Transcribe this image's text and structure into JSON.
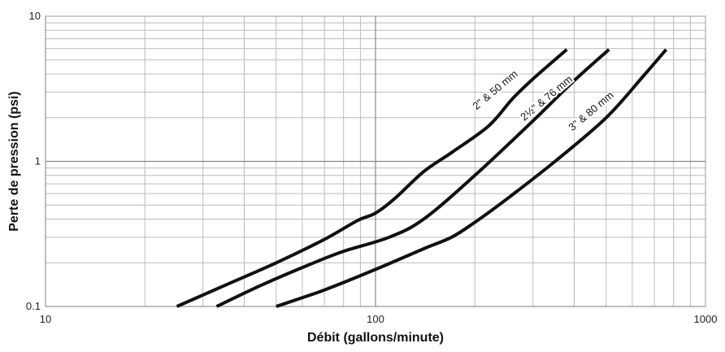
{
  "chart_data": {
    "type": "line",
    "title": "",
    "xlabel": "Débit (gallons/minute)",
    "ylabel": "Perte de pression (psi)",
    "xscale": "log",
    "yscale": "log",
    "xlim": [
      10,
      1000
    ],
    "ylim": [
      0.1,
      10
    ],
    "grid": true,
    "x_ticks": [
      "10",
      "100",
      "1000"
    ],
    "y_ticks": [
      "0.1",
      "1",
      "10"
    ],
    "series": [
      {
        "name": "2\" & 50 mm",
        "color": "#111111",
        "points": [
          [
            25,
            0.1
          ],
          [
            35,
            0.14
          ],
          [
            50,
            0.2
          ],
          [
            70,
            0.29
          ],
          [
            88,
            0.39
          ],
          [
            100,
            0.44
          ],
          [
            115,
            0.56
          ],
          [
            140,
            0.85
          ],
          [
            170,
            1.15
          ],
          [
            220,
            1.75
          ],
          [
            260,
            2.7
          ],
          [
            300,
            3.7
          ],
          [
            380,
            5.9
          ]
        ]
      },
      {
        "name": "2½\" & 76 mm",
        "color": "#111111",
        "points": [
          [
            33,
            0.1
          ],
          [
            45,
            0.14
          ],
          [
            65,
            0.2
          ],
          [
            80,
            0.24
          ],
          [
            110,
            0.3
          ],
          [
            140,
            0.4
          ],
          [
            200,
            0.8
          ],
          [
            300,
            1.9
          ],
          [
            400,
            3.6
          ],
          [
            510,
            5.9
          ]
        ]
      },
      {
        "name": "3\" & 80 mm",
        "color": "#111111",
        "points": [
          [
            50,
            0.1
          ],
          [
            70,
            0.13
          ],
          [
            100,
            0.18
          ],
          [
            140,
            0.25
          ],
          [
            170,
            0.3
          ],
          [
            200,
            0.38
          ],
          [
            250,
            0.55
          ],
          [
            350,
            1.0
          ],
          [
            500,
            2.0
          ],
          [
            650,
            3.9
          ],
          [
            760,
            5.9
          ]
        ]
      }
    ]
  }
}
